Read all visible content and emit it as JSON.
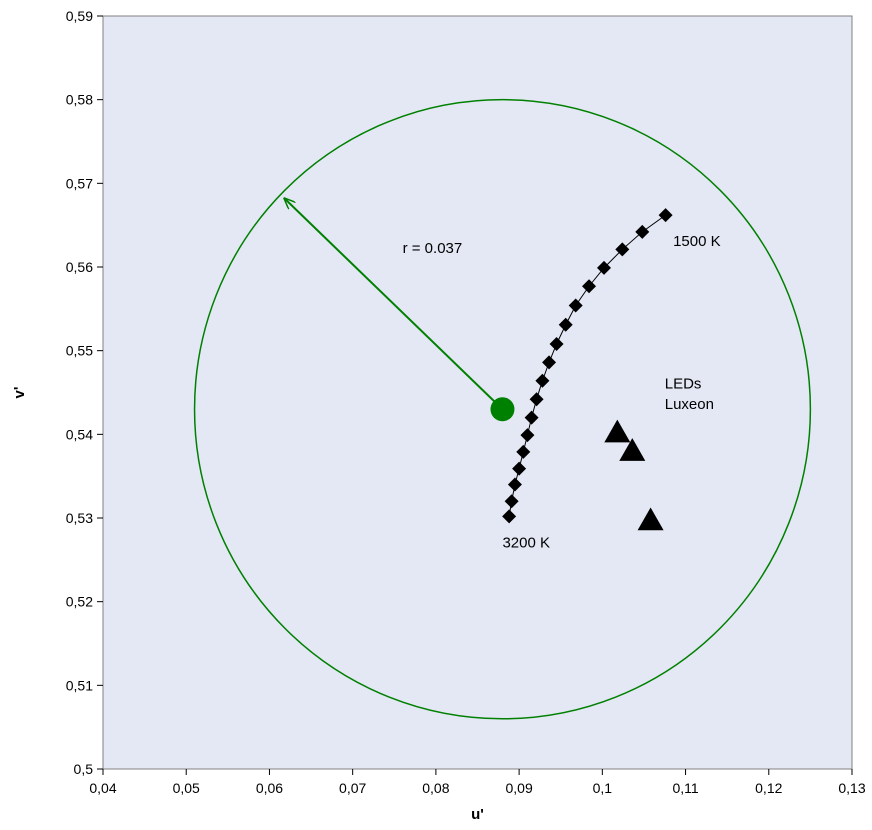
{
  "chart_data": {
    "type": "scatter",
    "xlabel": "u'",
    "ylabel": "v'",
    "xlim": [
      0.04,
      0.13
    ],
    "ylim": [
      0.5,
      0.59
    ],
    "x_ticks": [
      "0,04",
      "0,05",
      "0,06",
      "0,07",
      "0,08",
      "0,09",
      "0,1",
      "0,11",
      "0,12",
      "0,13"
    ],
    "y_ticks": [
      "0,5",
      "0,51",
      "0,52",
      "0,53",
      "0,54",
      "0,55",
      "0,56",
      "0,57",
      "0,58",
      "0,59"
    ],
    "grid": false,
    "plot_background": "#E3E8F4",
    "series": [
      {
        "marker": "diamond",
        "line": true,
        "color": "#000000",
        "points": [
          {
            "x": 0.0888,
            "y": 0.5302
          },
          {
            "x": 0.0891,
            "y": 0.532
          },
          {
            "x": 0.0895,
            "y": 0.534
          },
          {
            "x": 0.09,
            "y": 0.5359
          },
          {
            "x": 0.0905,
            "y": 0.5379
          },
          {
            "x": 0.091,
            "y": 0.5399
          },
          {
            "x": 0.0915,
            "y": 0.542
          },
          {
            "x": 0.0921,
            "y": 0.5442
          },
          {
            "x": 0.0928,
            "y": 0.5464
          },
          {
            "x": 0.0936,
            "y": 0.5486
          },
          {
            "x": 0.0945,
            "y": 0.5508
          },
          {
            "x": 0.0956,
            "y": 0.5531
          },
          {
            "x": 0.0968,
            "y": 0.5554
          },
          {
            "x": 0.0984,
            "y": 0.5577
          },
          {
            "x": 0.1002,
            "y": 0.5599
          },
          {
            "x": 0.1024,
            "y": 0.5621
          },
          {
            "x": 0.1048,
            "y": 0.5642
          },
          {
            "x": 0.1076,
            "y": 0.5662
          }
        ]
      },
      {
        "marker": "triangle",
        "line": false,
        "color": "#000000",
        "points": [
          {
            "x": 0.1018,
            "y": 0.5402
          },
          {
            "x": 0.1036,
            "y": 0.538
          },
          {
            "x": 0.1058,
            "y": 0.5297
          }
        ]
      },
      {
        "marker": "circle",
        "line": false,
        "color": "#008000",
        "points": [
          {
            "x": 0.088,
            "y": 0.543
          }
        ]
      }
    ],
    "circle": {
      "cx": 0.088,
      "cy": 0.543,
      "r": 0.037,
      "color": "#008000"
    },
    "arrow": {
      "from": [
        0.088,
        0.543
      ],
      "to": [
        0.0618,
        0.5682
      ],
      "color": "#008000"
    },
    "annotations": [
      {
        "text": "r = 0.037",
        "x": 0.076,
        "y": 0.5617
      },
      {
        "text": "1500 K",
        "x": 0.1085,
        "y": 0.5625
      },
      {
        "text": "3200 K",
        "x": 0.088,
        "y": 0.5265
      },
      {
        "text": "LEDs",
        "x": 0.1075,
        "y": 0.5455
      },
      {
        "text": "Luxeon",
        "x": 0.1075,
        "y": 0.543
      }
    ]
  }
}
